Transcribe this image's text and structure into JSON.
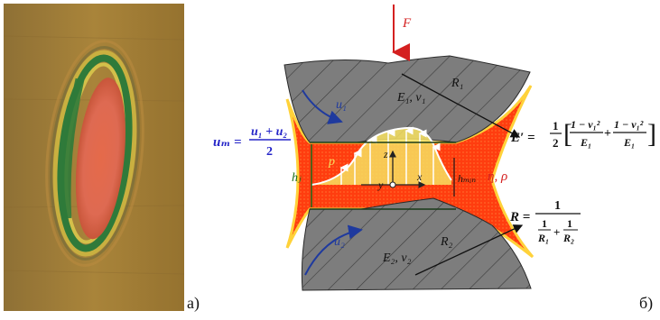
{
  "panel_labels": {
    "a": "а)",
    "b": "б)"
  },
  "diagram": {
    "force_label": "F",
    "upper_body": {
      "material": "E₁, ν₁",
      "radius": "R₁",
      "velocity": "u₁"
    },
    "lower_body": {
      "material": "E₂, ν₂",
      "radius": "R₂",
      "velocity": "u₂"
    },
    "film": {
      "pressure": "p",
      "z_axis": "z",
      "x_axis": "x",
      "y_axis": "y",
      "central_thickness": "hⱼ",
      "min_thickness": "hₘᵢₙ",
      "viscosity_density": "η, ρ"
    },
    "formulas": {
      "mean_velocity": {
        "lhs": "uₘ =",
        "num": "u₁ + u₂",
        "den": "2"
      },
      "reduced_modulus": {
        "lhs": "E′ =",
        "coef_num": "1",
        "coef_den": "2",
        "t1_num": "1 − ν₁²",
        "t1_den": "E₁",
        "t2_num": "1 − ν₁²",
        "t2_den": "E₁"
      },
      "reduced_radius": {
        "lhs": "R =",
        "num": "1",
        "r1_num": "1",
        "r1_den": "R₁",
        "r2_num": "1",
        "r2_den": "R₂"
      }
    }
  },
  "colors": {
    "body_fill": "#7d7d7d",
    "film_fill": "#ff3d0f",
    "film_edge": "#ffd23a",
    "velocity_blue": "#1f3a9e",
    "formula_blue": "#2525c8",
    "force_red": "#d42020",
    "pressure_yellow": "#f7e060",
    "thickness_green": "#1a6b1a"
  }
}
